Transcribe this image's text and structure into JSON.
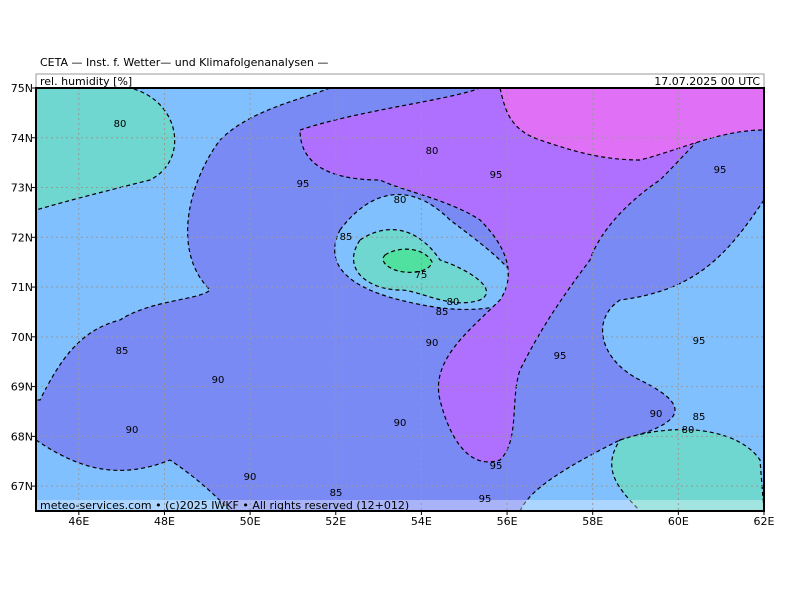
{
  "header": {
    "title": "CETA — Inst. f. Wetter— und Klimafolgenanalysen —",
    "variable": "rel. humidity [%]",
    "valid_time": "17.07.2025 00 UTC"
  },
  "footer": {
    "credit": "meteo-services.com • (c)2025 IWKF • All rights reserved (12+012)"
  },
  "map": {
    "lon_range": [
      45,
      62
    ],
    "lat_range": [
      66.5,
      75
    ],
    "lon_ticks": [
      {
        "value": 46,
        "label": "46E"
      },
      {
        "value": 48,
        "label": "48E"
      },
      {
        "value": 50,
        "label": "50E"
      },
      {
        "value": 52,
        "label": "52E"
      },
      {
        "value": 54,
        "label": "54E"
      },
      {
        "value": 56,
        "label": "56E"
      },
      {
        "value": 58,
        "label": "58E"
      },
      {
        "value": 60,
        "label": "60E"
      },
      {
        "value": 62,
        "label": "62E"
      }
    ],
    "lat_ticks": [
      {
        "value": 75,
        "label": "75N"
      },
      {
        "value": 74,
        "label": "74N"
      },
      {
        "value": 73,
        "label": "73N"
      },
      {
        "value": 72,
        "label": "72N"
      },
      {
        "value": 71,
        "label": "71N"
      },
      {
        "value": 70,
        "label": "70N"
      },
      {
        "value": 69,
        "label": "69N"
      },
      {
        "value": 68,
        "label": "68N"
      },
      {
        "value": 67,
        "label": "67N"
      }
    ],
    "contour_labels": [
      "80",
      "80",
      "95",
      "95",
      "80",
      "85",
      "75",
      "80",
      "85",
      "90",
      "85",
      "95",
      "90",
      "90",
      "85",
      "80",
      "90",
      "90",
      "90",
      "95",
      "85",
      "95",
      "95",
      "95"
    ]
  }
}
